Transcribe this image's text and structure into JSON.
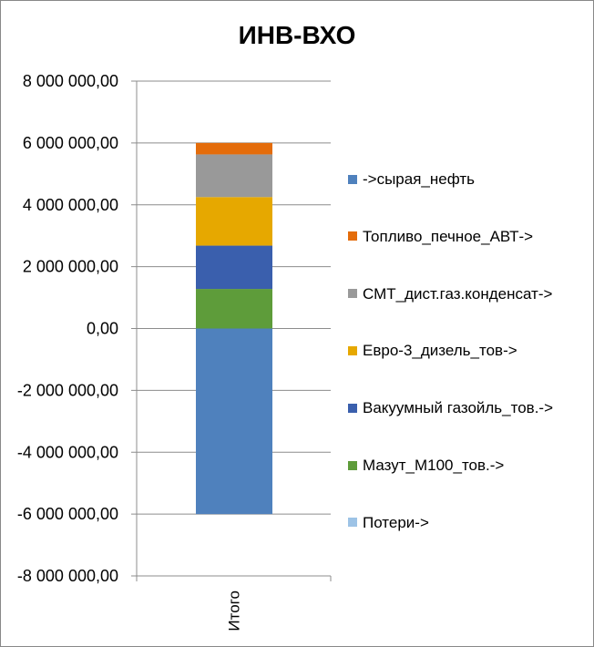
{
  "chart_data": {
    "type": "bar",
    "stacked": true,
    "title": "ИНВ-ВХО",
    "categories": [
      "Итого"
    ],
    "ylim": [
      -8000000,
      8000000
    ],
    "y_ticks": [
      8000000,
      6000000,
      4000000,
      2000000,
      0,
      -2000000,
      -4000000,
      -6000000,
      -8000000
    ],
    "y_tick_labels": [
      "8 000 000,00",
      "6 000 000,00",
      "4 000 000,00",
      "2 000 000,00",
      "0,00",
      "-2 000 000,00",
      "-4 000 000,00",
      "-6 000 000,00",
      "-8 000 000,00"
    ],
    "grid": true,
    "legend_position": "right",
    "series": [
      {
        "name": "->сырая_нефть",
        "values": [
          -6000000
        ],
        "color": "#4F81BD"
      },
      {
        "name": "Топливо_печное_АВТ->",
        "values": [
          370000
        ],
        "color": "#E46C0A"
      },
      {
        "name": "СМТ_дист.газ.конденсат->",
        "values": [
          1380000
        ],
        "color": "#999999"
      },
      {
        "name": "Евро-3_дизель_тов->",
        "values": [
          1570000
        ],
        "color": "#E6A800"
      },
      {
        "name": "Вакуумный газойль_тов.->",
        "values": [
          1400000
        ],
        "color": "#3A5FAD"
      },
      {
        "name": "Мазут_М100_тов.->",
        "values": [
          1280000
        ],
        "color": "#5E9C3A"
      },
      {
        "name": "Потери->",
        "values": [
          0
        ],
        "color": "#9DC3E6"
      }
    ],
    "stack_order": [
      "Мазут_М100_тов.->",
      "Вакуумный газойль_тов.->",
      "Евро-3_дизель_тов->",
      "СМТ_дист.газ.конденсат->",
      "Топливо_печное_АВТ->"
    ]
  }
}
